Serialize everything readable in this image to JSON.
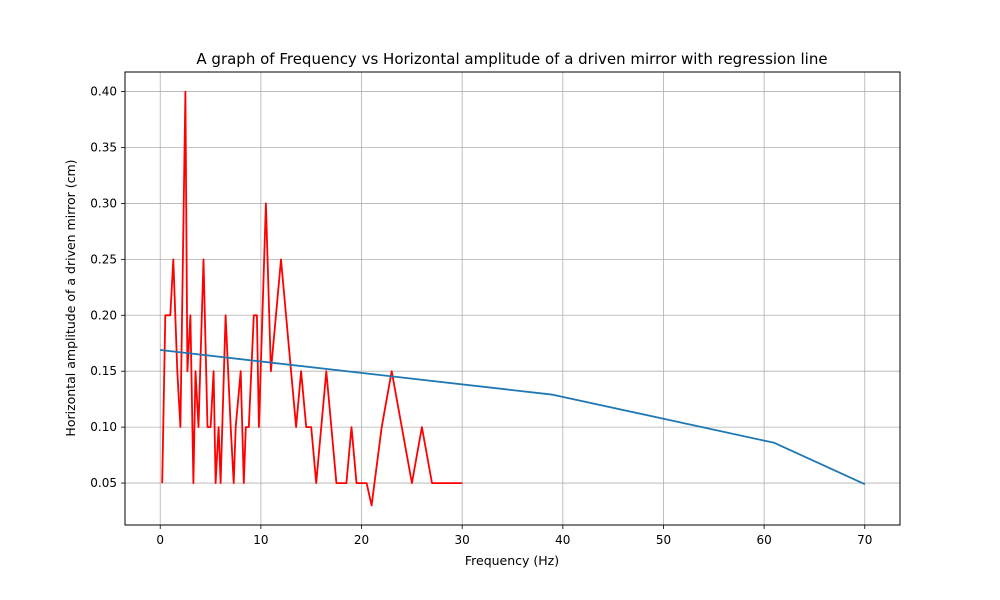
{
  "chart_data": {
    "type": "line",
    "title": "A graph of Frequency vs Horizontal amplitude of a driven mirror with regression line",
    "xlabel": "Frequency (Hz)",
    "ylabel": "Horizontal amplitude of a driven mirror (cm)",
    "xlim": [
      -3.5,
      73.5
    ],
    "ylim": [
      0.0125,
      0.4175
    ],
    "xticks": [
      0,
      10,
      20,
      30,
      40,
      50,
      60,
      70
    ],
    "yticks": [
      0.05,
      0.1,
      0.15,
      0.2,
      0.25,
      0.3,
      0.35,
      0.4
    ],
    "xtick_labels": [
      "0",
      "10",
      "20",
      "30",
      "40",
      "50",
      "60",
      "70"
    ],
    "ytick_labels": [
      "0.05",
      "0.10",
      "0.15",
      "0.20",
      "0.25",
      "0.30",
      "0.35",
      "0.40"
    ],
    "grid": true,
    "series": [
      {
        "color": "#ff0000",
        "x": [
          0.2,
          0.5,
          1.0,
          1.3,
          1.7,
          2.0,
          2.5,
          2.7,
          3.0,
          3.3,
          3.5,
          3.8,
          4.3,
          4.7,
          5.0,
          5.3,
          5.5,
          5.8,
          6.0,
          6.5,
          7.0,
          7.3,
          7.5,
          8.0,
          8.3,
          8.5,
          8.8,
          9.3,
          9.6,
          9.8,
          10.5,
          11.0,
          12.0,
          13.5,
          14.0,
          14.5,
          15.0,
          15.5,
          16.5,
          17.5,
          18.5,
          19.0,
          19.5,
          20.5,
          21.0,
          22.0,
          23.0,
          25.0,
          26.0,
          27.0,
          30.0
        ],
        "y": [
          0.05,
          0.2,
          0.2,
          0.25,
          0.15,
          0.1,
          0.4,
          0.15,
          0.2,
          0.05,
          0.15,
          0.1,
          0.25,
          0.1,
          0.1,
          0.15,
          0.05,
          0.1,
          0.05,
          0.2,
          0.1,
          0.05,
          0.1,
          0.15,
          0.05,
          0.1,
          0.1,
          0.2,
          0.2,
          0.1,
          0.3,
          0.15,
          0.25,
          0.1,
          0.15,
          0.1,
          0.1,
          0.05,
          0.15,
          0.05,
          0.05,
          0.1,
          0.05,
          0.05,
          0.03,
          0.1,
          0.15,
          0.05,
          0.1,
          0.05,
          0.05
        ]
      },
      {
        "color": "#1f77b4",
        "x": [
          0,
          39,
          61,
          70
        ],
        "y": [
          0.169,
          0.129,
          0.086,
          0.049
        ]
      }
    ]
  }
}
